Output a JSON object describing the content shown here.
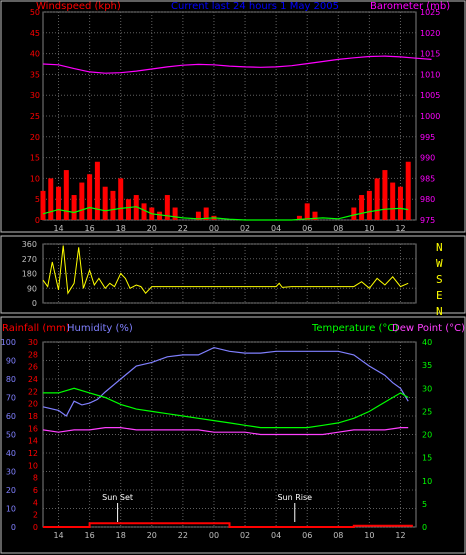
{
  "chart_data": [
    {
      "type": "line",
      "panel": "wind-baro",
      "title": "Current last 24 hours 1 May 2005",
      "left_axis_label": "Windspeed (kph)",
      "right_axis_label": "Barometer (mb)",
      "left_range": [
        0,
        50
      ],
      "left_ticks": [
        "0",
        "5",
        "10",
        "15",
        "20",
        "25",
        "30",
        "35",
        "40",
        "45",
        "50"
      ],
      "right_range": [
        975,
        1025
      ],
      "right_ticks": [
        "975",
        "980",
        "985",
        "990",
        "995",
        "1000",
        "1005",
        "1010",
        "1015",
        "1020",
        "1025"
      ],
      "x_ticks": [
        "14",
        "16",
        "18",
        "20",
        "22",
        "00",
        "02",
        "04",
        "06",
        "08",
        "10",
        "12"
      ],
      "grid": true,
      "series": [
        {
          "role": "barometer",
          "color": "#ff00ff",
          "x": [
            0,
            1,
            2,
            3,
            4,
            5,
            6,
            7,
            8,
            9,
            10,
            11,
            12,
            13,
            14,
            15,
            16,
            17,
            18,
            19,
            20,
            21,
            22,
            23,
            24,
            25
          ],
          "values": [
            1012.5,
            1012.3,
            1011.4,
            1010.6,
            1010.3,
            1010.4,
            1010.8,
            1011.3,
            1011.8,
            1012.2,
            1012.4,
            1012.3,
            1012.0,
            1011.8,
            1011.7,
            1011.8,
            1012.1,
            1012.6,
            1013.1,
            1013.6,
            1014.0,
            1014.3,
            1014.4,
            1014.2,
            1013.9,
            1013.6
          ]
        },
        {
          "role": "wind-gust",
          "color": "#ff0000",
          "style": "bars",
          "x": [
            0,
            0.5,
            1,
            1.5,
            2,
            2.5,
            3,
            3.5,
            4,
            4.5,
            5,
            5.5,
            6,
            6.5,
            7,
            7.5,
            8,
            8.5,
            9,
            9.5,
            10,
            10.5,
            11,
            11.5,
            12,
            12.5,
            13,
            13.5,
            14,
            14.5,
            15,
            15.5,
            16,
            16.5,
            17,
            17.5,
            18,
            18.5,
            19,
            19.5,
            20,
            20.5,
            21,
            21.5,
            22,
            22.5,
            23,
            23.5
          ],
          "values": [
            7,
            10,
            8,
            12,
            6,
            9,
            11,
            14,
            8,
            7,
            10,
            5,
            6,
            4,
            3,
            2,
            6,
            3,
            0,
            0,
            2,
            3,
            1,
            0,
            0,
            0,
            0,
            0,
            0,
            0,
            0,
            0,
            0,
            1,
            4,
            2,
            0,
            0,
            0,
            0,
            3,
            6,
            7,
            10,
            12,
            9,
            8,
            14
          ]
        },
        {
          "role": "wind-average",
          "color": "#00ff00",
          "x": [
            0,
            1,
            2,
            3,
            4,
            5,
            6,
            7,
            8,
            9,
            10,
            11,
            12,
            13,
            14,
            15,
            16,
            17,
            18,
            19,
            20,
            21,
            22,
            23,
            23.5
          ],
          "values": [
            1.5,
            2.5,
            1.8,
            3.0,
            2.2,
            2.8,
            3.2,
            1.5,
            1.0,
            0.5,
            0.3,
            0.5,
            0.2,
            0,
            0,
            0,
            0,
            0.3,
            0.5,
            0.3,
            1.2,
            2.0,
            2.6,
            2.8,
            2.5
          ]
        }
      ]
    },
    {
      "type": "line",
      "panel": "wind-direction",
      "left_ticks": [
        "0",
        "90",
        "180",
        "270",
        "360"
      ],
      "left_range": [
        0,
        360
      ],
      "right_labels": [
        "N",
        "W",
        "S",
        "E",
        "N"
      ],
      "grid": true,
      "series": [
        {
          "role": "wind-direction",
          "color": "#ffff00",
          "x": [
            0,
            0.3,
            0.6,
            1,
            1.3,
            1.6,
            2,
            2.3,
            2.6,
            3,
            3.3,
            3.6,
            4,
            4.3,
            4.6,
            5,
            5.3,
            5.6,
            6,
            6.3,
            6.6,
            7,
            7.3,
            7.6,
            8,
            10,
            12,
            14,
            15,
            15.2,
            15.4,
            16,
            18,
            20,
            20.5,
            21,
            21.5,
            22,
            22.5,
            23,
            23.5
          ],
          "values": [
            140,
            100,
            250,
            80,
            350,
            60,
            120,
            340,
            90,
            200,
            110,
            150,
            90,
            120,
            100,
            180,
            150,
            90,
            110,
            100,
            60,
            100,
            100,
            100,
            100,
            100,
            100,
            100,
            100,
            120,
            95,
            100,
            100,
            100,
            130,
            90,
            150,
            110,
            160,
            100,
            120
          ]
        }
      ]
    },
    {
      "type": "line",
      "panel": "rain-humidity-temp",
      "labels": [
        "Rainfall (mm)",
        "Humidity (%)",
        "Temperature (°C)",
        "Dew Point (°C)"
      ],
      "humidity_ticks": [
        "0",
        "10",
        "20",
        "30",
        "40",
        "50",
        "60",
        "70",
        "80",
        "90",
        "100"
      ],
      "rain_ticks": [
        "0",
        "2",
        "4",
        "6",
        "8",
        "10",
        "12",
        "14",
        "16",
        "18",
        "20",
        "22",
        "24",
        "26",
        "28",
        "30"
      ],
      "temp_ticks": [
        "0",
        "5",
        "10",
        "15",
        "20",
        "25",
        "30",
        "35",
        "40"
      ],
      "x_ticks": [
        "14",
        "16",
        "18",
        "20",
        "22",
        "00",
        "02",
        "04",
        "06",
        "08",
        "10",
        "12"
      ],
      "annotations": [
        {
          "text": "Sun Set",
          "x": 4.8
        },
        {
          "text": "Sun Rise",
          "x": 16.2
        }
      ],
      "grid": true,
      "series": [
        {
          "role": "humidity",
          "color": "#8080ff",
          "x": [
            0,
            1,
            1.5,
            2,
            2.5,
            3,
            3.5,
            4,
            5,
            6,
            7,
            8,
            9,
            10,
            11,
            12,
            13,
            14,
            15,
            16,
            17,
            18,
            19,
            20,
            21,
            22,
            22.5,
            23,
            23.5
          ],
          "values": [
            65,
            63,
            60,
            68,
            66,
            67,
            69,
            73,
            80,
            87,
            89,
            92,
            93,
            93,
            97,
            95,
            94,
            94,
            95,
            95,
            95,
            95,
            95,
            93,
            87,
            82,
            78,
            75,
            68
          ]
        },
        {
          "role": "temperature",
          "color": "#00ff00",
          "x": [
            0,
            1,
            2,
            3,
            4,
            5,
            6,
            7,
            8,
            9,
            10,
            11,
            12,
            13,
            14,
            15,
            16,
            17,
            18,
            19,
            20,
            21,
            22,
            23,
            23.5
          ],
          "values": [
            29,
            29,
            30,
            29,
            28,
            26.5,
            25.5,
            25,
            24.5,
            24,
            23.5,
            23,
            22.5,
            22,
            21.5,
            21.5,
            21.5,
            21.5,
            22,
            22.5,
            23.5,
            25,
            27,
            29,
            28
          ]
        },
        {
          "role": "dew-point",
          "color": "#ff40ff",
          "x": [
            0,
            1,
            2,
            3,
            4,
            5,
            6,
            7,
            8,
            9,
            10,
            11,
            12,
            13,
            14,
            15,
            16,
            17,
            18,
            19,
            20,
            21,
            22,
            23,
            23.5
          ],
          "values": [
            21,
            20.5,
            21,
            21,
            21.5,
            21.5,
            21,
            21,
            21,
            21,
            21,
            20.5,
            20.5,
            20.5,
            20,
            20,
            20,
            20,
            20,
            20.5,
            21,
            21,
            21,
            21.5,
            21.5
          ]
        },
        {
          "role": "rainfall",
          "color": "#ff0000",
          "x": [
            0,
            3,
            3,
            12,
            12,
            20,
            20,
            23.8
          ],
          "values": [
            0,
            0,
            0.6,
            0.6,
            0,
            0,
            0.2,
            0.2
          ]
        }
      ]
    }
  ]
}
